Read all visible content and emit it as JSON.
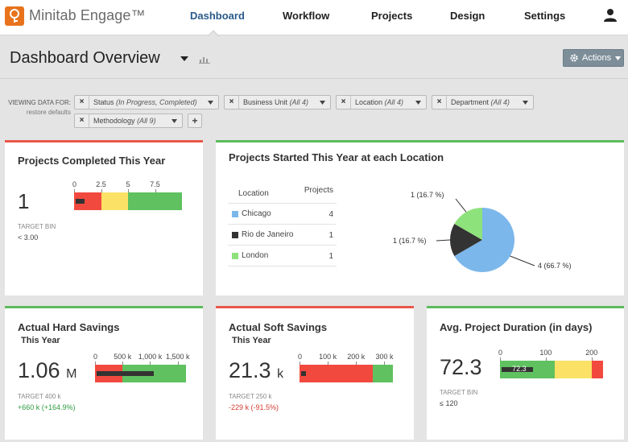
{
  "app": {
    "name": "Minitab Engage™"
  },
  "nav": {
    "dashboard": "Dashboard",
    "workflow": "Workflow",
    "projects": "Projects",
    "design": "Design",
    "settings": "Settings"
  },
  "header": {
    "title": "Dashboard Overview",
    "actions_label": "Actions"
  },
  "filters": {
    "label_line1": "VIEWING DATA FOR:",
    "label_line2": "restore defaults",
    "chips": [
      {
        "name": "Status",
        "value": "(In Progress, Completed)"
      },
      {
        "name": "Business Unit",
        "value": "(All 4)"
      },
      {
        "name": "Location",
        "value": "(All 4)"
      },
      {
        "name": "Department",
        "value": "(All 4)"
      },
      {
        "name": "Methodology",
        "value": "(All 9)"
      }
    ],
    "add_label": "+"
  },
  "colors": {
    "red": "#f2493f",
    "yellow": "#fbe267",
    "green": "#5fc15f",
    "pie_blue": "#7cb7eb",
    "pie_dark": "#333333",
    "pie_green": "#8ee27b",
    "accent": "#2b5a8a"
  },
  "cards": {
    "completed": {
      "title": "Projects Completed This Year",
      "value": "1",
      "value_num": 1,
      "target_label": "TARGET BIN",
      "target_value": "< 3.00",
      "ticks": [
        "0",
        "2.5",
        "5",
        "7.5"
      ],
      "scale_max": 10,
      "bands": [
        2.5,
        5,
        10
      ]
    },
    "location": {
      "title": "Projects Started This Year at each Location",
      "col_location": "Location",
      "col_projects": "Projects",
      "rows": [
        {
          "name": "Chicago",
          "count": "4",
          "color": "#7cb7eb"
        },
        {
          "name": "Rio de Janeiro",
          "count": "1",
          "color": "#333333"
        },
        {
          "name": "London",
          "count": "1",
          "color": "#8ee27b"
        }
      ],
      "pie_labels": [
        "1 (16.7 %)",
        "1 (16.7 %)",
        "4 (66.7 %)"
      ]
    },
    "hard": {
      "title": "Actual Hard Savings",
      "subtitle": "This Year",
      "value": "1.06",
      "unit": "M",
      "target_label": "TARGET 400 k",
      "delta": "+660 k (+164.9%)",
      "ticks": [
        "0",
        "500 k",
        "1,000 k",
        "1,500 k"
      ],
      "value_num": 1060,
      "scale_max": 1650,
      "bands": [
        500,
        1650
      ]
    },
    "soft": {
      "title": "Actual Soft Savings",
      "subtitle": "This Year",
      "value": "21.3",
      "unit": "k",
      "target_label": "TARGET 250 k",
      "delta": "-229 k (-91.5%)",
      "ticks": [
        "0",
        "100 k",
        "200 k",
        "300 k"
      ],
      "value_num": 21.3,
      "scale_max": 330,
      "bands": [
        260,
        330
      ]
    },
    "duration": {
      "title": "Avg. Project Duration (in days)",
      "value": "72.3",
      "inner_label": "72.3",
      "target_label": "TARGET BIN",
      "target_value": "≤ 120",
      "ticks": [
        "0",
        "100",
        "200"
      ],
      "value_num": 72.3,
      "scale_max": 225,
      "bands": [
        120,
        200,
        225
      ]
    }
  }
}
